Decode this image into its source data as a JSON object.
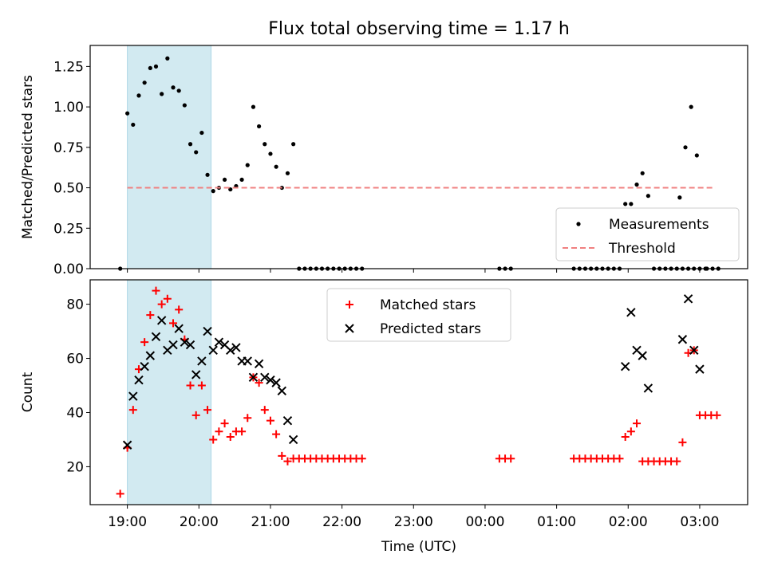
{
  "title": "Flux total observing time = 1.17 h",
  "colors": {
    "shade": "#add8e6",
    "measurement": "#000000",
    "threshold": "#f08080",
    "matched": "#ff0000",
    "predicted": "#000000"
  },
  "chart_data": [
    {
      "type": "scatter",
      "panel": "top",
      "title": "Flux total observing time = 1.17 h",
      "xlabel": "",
      "ylabel": "Matched/Predicted stars",
      "x_unit": "hours after 19:00 UTC",
      "xlim": [
        -0.52,
        8.67
      ],
      "ylim": [
        0,
        1.38
      ],
      "yticks": [
        0.0,
        0.25,
        0.5,
        0.75,
        1.0,
        1.25
      ],
      "ytick_labels": [
        "0.00",
        "0.25",
        "0.50",
        "0.75",
        "1.00",
        "1.25"
      ],
      "shaded_interval": [
        0.0,
        1.17
      ],
      "legend_position": "lower right",
      "series": [
        {
          "name": "Measurements",
          "kind": "points",
          "points": [
            [
              -0.1,
              0.0
            ],
            [
              0.0,
              0.96
            ],
            [
              0.08,
              0.89
            ],
            [
              0.16,
              1.07
            ],
            [
              0.24,
              1.15
            ],
            [
              0.32,
              1.24
            ],
            [
              0.4,
              1.25
            ],
            [
              0.48,
              1.08
            ],
            [
              0.56,
              1.3
            ],
            [
              0.64,
              1.12
            ],
            [
              0.72,
              1.1
            ],
            [
              0.8,
              1.01
            ],
            [
              0.88,
              0.77
            ],
            [
              0.96,
              0.72
            ],
            [
              1.04,
              0.84
            ],
            [
              1.12,
              0.58
            ],
            [
              1.2,
              0.48
            ],
            [
              1.28,
              0.5
            ],
            [
              1.36,
              0.55
            ],
            [
              1.44,
              0.49
            ],
            [
              1.52,
              0.51
            ],
            [
              1.6,
              0.55
            ],
            [
              1.68,
              0.64
            ],
            [
              1.76,
              1.0
            ],
            [
              1.84,
              0.88
            ],
            [
              1.92,
              0.77
            ],
            [
              2.0,
              0.71
            ],
            [
              2.08,
              0.63
            ],
            [
              2.16,
              0.5
            ],
            [
              2.24,
              0.59
            ],
            [
              2.32,
              0.77
            ],
            [
              2.4,
              0.0
            ],
            [
              2.48,
              0.0
            ],
            [
              2.56,
              0.0
            ],
            [
              2.64,
              0.0
            ],
            [
              2.72,
              0.0
            ],
            [
              2.8,
              0.0
            ],
            [
              2.88,
              0.0
            ],
            [
              2.96,
              0.0
            ],
            [
              3.04,
              0.0
            ],
            [
              3.12,
              0.0
            ],
            [
              3.2,
              0.0
            ],
            [
              3.28,
              0.0
            ],
            [
              5.2,
              0.0
            ],
            [
              5.28,
              0.0
            ],
            [
              5.36,
              0.0
            ],
            [
              6.24,
              0.0
            ],
            [
              6.32,
              0.0
            ],
            [
              6.4,
              0.0
            ],
            [
              6.48,
              0.0
            ],
            [
              6.56,
              0.0
            ],
            [
              6.64,
              0.0
            ],
            [
              6.72,
              0.0
            ],
            [
              6.8,
              0.0
            ],
            [
              6.88,
              0.0
            ],
            [
              6.96,
              0.4
            ],
            [
              7.04,
              0.4
            ],
            [
              7.12,
              0.52
            ],
            [
              7.2,
              0.59
            ],
            [
              7.28,
              0.45
            ],
            [
              7.36,
              0.0
            ],
            [
              7.44,
              0.0
            ],
            [
              7.52,
              0.0
            ],
            [
              7.6,
              0.0
            ],
            [
              7.68,
              0.0
            ],
            [
              7.76,
              0.0
            ],
            [
              7.84,
              0.0
            ],
            [
              7.92,
              0.0
            ],
            [
              8.0,
              0.0
            ],
            [
              8.08,
              0.0
            ],
            [
              7.72,
              0.44
            ],
            [
              7.8,
              0.75
            ],
            [
              7.88,
              1.0
            ],
            [
              7.96,
              0.7
            ],
            [
              8.1,
              0.0
            ],
            [
              8.18,
              0.0
            ],
            [
              8.26,
              0.0
            ]
          ]
        },
        {
          "name": "Threshold",
          "kind": "dashed-line",
          "points": [
            [
              -0.0,
              0.5
            ],
            [
              8.22,
              0.5
            ]
          ]
        }
      ]
    },
    {
      "type": "scatter",
      "panel": "bottom",
      "title": "",
      "xlabel": "Time (UTC)",
      "ylabel": "Count",
      "x_unit": "hours after 19:00 UTC",
      "xlim": [
        -0.52,
        8.67
      ],
      "ylim": [
        6,
        89
      ],
      "yticks": [
        20,
        40,
        60,
        80
      ],
      "ytick_labels": [
        "20",
        "40",
        "60",
        "80"
      ],
      "xticks": [
        0,
        1,
        2,
        3,
        4,
        5,
        6,
        7,
        8
      ],
      "xtick_labels": [
        "19:00",
        "20:00",
        "21:00",
        "22:00",
        "23:00",
        "00:00",
        "01:00",
        "02:00",
        "03:00"
      ],
      "shaded_interval": [
        0.0,
        1.17
      ],
      "legend_position": "upper center",
      "series": [
        {
          "name": "Matched stars",
          "marker": "plus",
          "points": [
            [
              -0.1,
              10
            ],
            [
              0.0,
              27
            ],
            [
              0.08,
              41
            ],
            [
              0.16,
              56
            ],
            [
              0.24,
              66
            ],
            [
              0.32,
              76
            ],
            [
              0.4,
              85
            ],
            [
              0.48,
              80
            ],
            [
              0.56,
              82
            ],
            [
              0.64,
              73
            ],
            [
              0.72,
              78
            ],
            [
              0.8,
              67
            ],
            [
              0.88,
              50
            ],
            [
              0.96,
              39
            ],
            [
              1.04,
              50
            ],
            [
              1.12,
              41
            ],
            [
              1.2,
              30
            ],
            [
              1.28,
              33
            ],
            [
              1.36,
              36
            ],
            [
              1.44,
              31
            ],
            [
              1.52,
              33
            ],
            [
              1.6,
              33
            ],
            [
              1.68,
              38
            ],
            [
              1.76,
              53
            ],
            [
              1.84,
              51
            ],
            [
              1.92,
              41
            ],
            [
              2.0,
              37
            ],
            [
              2.08,
              32
            ],
            [
              2.16,
              24
            ],
            [
              2.24,
              22
            ],
            [
              2.32,
              23
            ],
            [
              2.4,
              23
            ],
            [
              2.48,
              23
            ],
            [
              2.56,
              23
            ],
            [
              2.64,
              23
            ],
            [
              2.72,
              23
            ],
            [
              2.8,
              23
            ],
            [
              2.88,
              23
            ],
            [
              2.96,
              23
            ],
            [
              3.04,
              23
            ],
            [
              3.12,
              23
            ],
            [
              3.2,
              23
            ],
            [
              3.28,
              23
            ],
            [
              5.2,
              23
            ],
            [
              5.28,
              23
            ],
            [
              5.36,
              23
            ],
            [
              6.24,
              23
            ],
            [
              6.32,
              23
            ],
            [
              6.4,
              23
            ],
            [
              6.48,
              23
            ],
            [
              6.56,
              23
            ],
            [
              6.64,
              23
            ],
            [
              6.72,
              23
            ],
            [
              6.8,
              23
            ],
            [
              6.88,
              23
            ],
            [
              6.96,
              31
            ],
            [
              7.04,
              33
            ],
            [
              7.12,
              36
            ],
            [
              7.2,
              22
            ],
            [
              7.28,
              22
            ],
            [
              7.36,
              22
            ],
            [
              7.44,
              22
            ],
            [
              7.52,
              22
            ],
            [
              7.6,
              22
            ],
            [
              7.68,
              22
            ],
            [
              7.76,
              29
            ],
            [
              7.84,
              62
            ],
            [
              7.92,
              63
            ],
            [
              8.0,
              39
            ],
            [
              8.08,
              39
            ],
            [
              8.16,
              39
            ],
            [
              8.24,
              39
            ]
          ]
        },
        {
          "name": "Predicted stars",
          "marker": "x",
          "points": [
            [
              0.0,
              28
            ],
            [
              0.08,
              46
            ],
            [
              0.16,
              52
            ],
            [
              0.24,
              57
            ],
            [
              0.32,
              61
            ],
            [
              0.4,
              68
            ],
            [
              0.48,
              74
            ],
            [
              0.56,
              63
            ],
            [
              0.64,
              65
            ],
            [
              0.72,
              71
            ],
            [
              0.8,
              66
            ],
            [
              0.88,
              65
            ],
            [
              0.96,
              54
            ],
            [
              1.04,
              59
            ],
            [
              1.12,
              70
            ],
            [
              1.2,
              63
            ],
            [
              1.28,
              66
            ],
            [
              1.36,
              65
            ],
            [
              1.44,
              63
            ],
            [
              1.52,
              64
            ],
            [
              1.6,
              59
            ],
            [
              1.68,
              59
            ],
            [
              1.76,
              53
            ],
            [
              1.84,
              58
            ],
            [
              1.92,
              53
            ],
            [
              2.0,
              52
            ],
            [
              2.08,
              51
            ],
            [
              2.16,
              48
            ],
            [
              2.24,
              37
            ],
            [
              2.32,
              30
            ],
            [
              6.96,
              57
            ],
            [
              7.04,
              77
            ],
            [
              7.12,
              63
            ],
            [
              7.2,
              61
            ],
            [
              7.28,
              49
            ],
            [
              7.76,
              67
            ],
            [
              7.84,
              82
            ],
            [
              7.92,
              63
            ],
            [
              8.0,
              56
            ]
          ]
        }
      ]
    }
  ]
}
